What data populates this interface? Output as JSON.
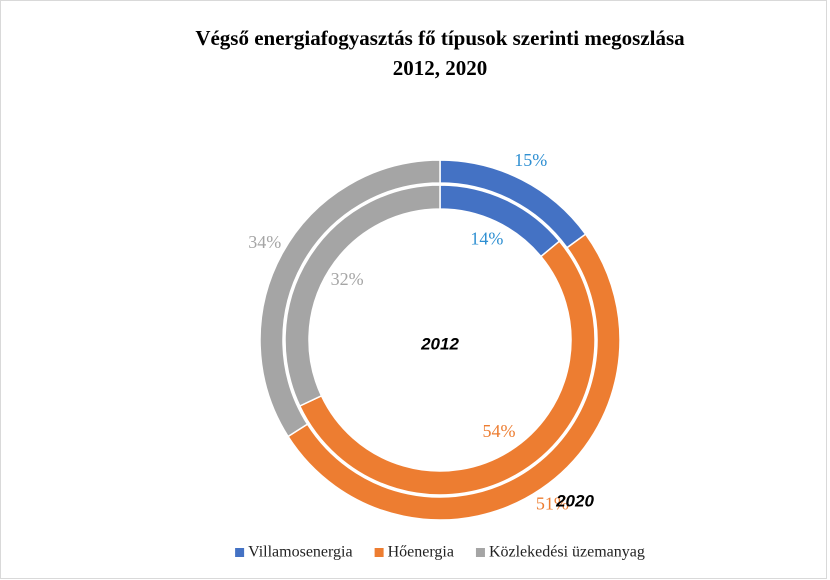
{
  "chart_data": {
    "type": "donut",
    "title": "Végső energiafogyasztás fő típusok szerinti  megoszlása",
    "subtitle": "2012, 2020",
    "categories": [
      "Villamosenergia",
      "Hőenergia",
      "Közlekedési üzemanyag"
    ],
    "colors": [
      "#4472c4",
      "#ed7d31",
      "#a5a5a5"
    ],
    "label_colors": [
      "#2e8fd2",
      "#ed7d31",
      "#a5a5a5"
    ],
    "series": [
      {
        "name": "2012",
        "values": [
          14,
          54,
          32
        ],
        "value_labels": [
          "14%",
          "54%",
          "32%"
        ]
      },
      {
        "name": "2020",
        "values": [
          15,
          51,
          34
        ],
        "value_labels": [
          "15%",
          "51%",
          "34%"
        ]
      }
    ],
    "legend": "bottom"
  }
}
